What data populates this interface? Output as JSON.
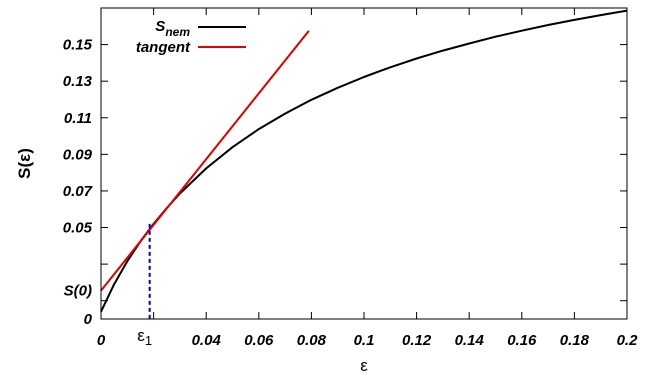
{
  "chart_data": {
    "type": "line",
    "title": "",
    "xlabel": "ε",
    "ylabel": "S(ε)",
    "xlim": [
      0,
      0.2
    ],
    "ylim": [
      0,
      0.17
    ],
    "grid": false,
    "legend_position": "top-left",
    "x_ticks": [
      {
        "value": 0,
        "label": "0"
      },
      {
        "value": 0.04,
        "label": "0.04"
      },
      {
        "value": 0.06,
        "label": "0.06"
      },
      {
        "value": 0.08,
        "label": "0.08"
      },
      {
        "value": 0.1,
        "label": "0.1"
      },
      {
        "value": 0.12,
        "label": "0.12"
      },
      {
        "value": 0.14,
        "label": "0.14"
      },
      {
        "value": 0.16,
        "label": "0.16"
      },
      {
        "value": 0.18,
        "label": "0.18"
      },
      {
        "value": 0.2,
        "label": "0.2"
      }
    ],
    "x_extra_ticks": [
      0.02
    ],
    "y_ticks": [
      {
        "value": 0,
        "label": "0"
      },
      {
        "value": 0.05,
        "label": "0.05"
      },
      {
        "value": 0.07,
        "label": "0.07"
      },
      {
        "value": 0.09,
        "label": "0.09"
      },
      {
        "value": 0.11,
        "label": "0.11"
      },
      {
        "value": 0.13,
        "label": "0.13"
      },
      {
        "value": 0.15,
        "label": "0.15"
      }
    ],
    "y_extra_ticks": [
      0.01,
      0.03
    ],
    "series": [
      {
        "name_main": "S",
        "name_sub": "nem",
        "color": "#000000",
        "x": [
          0,
          0.005,
          0.01,
          0.015,
          0.02,
          0.025,
          0.03,
          0.04,
          0.05,
          0.06,
          0.07,
          0.08,
          0.09,
          0.1,
          0.11,
          0.12,
          0.13,
          0.14,
          0.15,
          0.16,
          0.17,
          0.18,
          0.19,
          0.2
        ],
        "y": [
          0.004,
          0.0191,
          0.0316,
          0.0424,
          0.052,
          0.0607,
          0.0686,
          0.0823,
          0.0939,
          0.1038,
          0.1123,
          0.1198,
          0.1264,
          0.1323,
          0.1376,
          0.1424,
          0.1467,
          0.1506,
          0.1543,
          0.1576,
          0.1607,
          0.1635,
          0.1661,
          0.1686
        ]
      },
      {
        "name": "tangent",
        "color": "#e00000",
        "x": [
          0,
          0.079
        ],
        "y": [
          0.0155,
          0.1575
        ]
      }
    ],
    "annotations": [
      {
        "type": "label",
        "text": "S(0)",
        "y": 0.0155
      },
      {
        "type": "vline_dashed",
        "color": "#0000cc",
        "x": 0.0185,
        "y_top": 0.052,
        "label_main": "ε",
        "label_sub": "1"
      }
    ]
  }
}
